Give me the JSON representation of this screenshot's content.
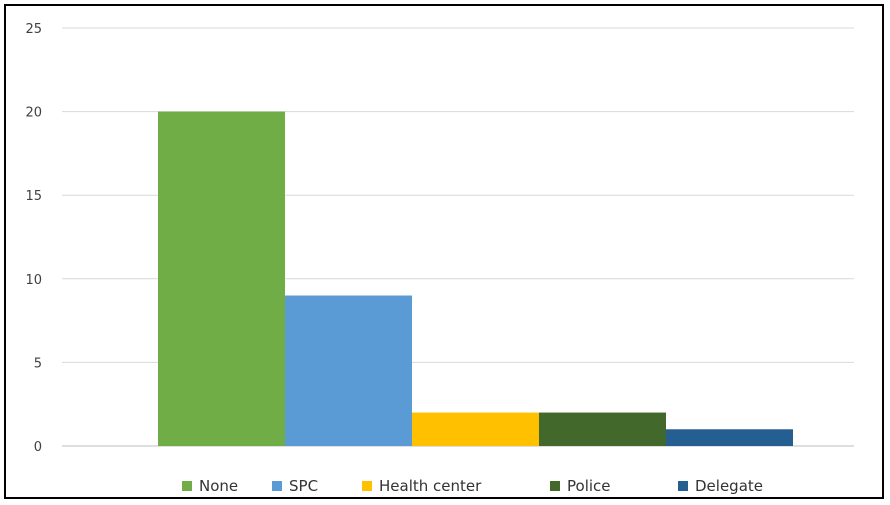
{
  "chart_data": {
    "type": "bar",
    "categories": [
      "None",
      "SPC",
      "Health center",
      "Police",
      "Delegate"
    ],
    "values": [
      20,
      9,
      2,
      2,
      1
    ],
    "colors": [
      "#70ad47",
      "#5b9bd5",
      "#ffc000",
      "#43682b",
      "#255e91"
    ],
    "ylim": [
      0,
      25
    ],
    "yticks": [
      0,
      5,
      10,
      15,
      20,
      25
    ],
    "grid": true,
    "legend_position": "bottom",
    "title": "",
    "xlabel": "",
    "ylabel": ""
  }
}
